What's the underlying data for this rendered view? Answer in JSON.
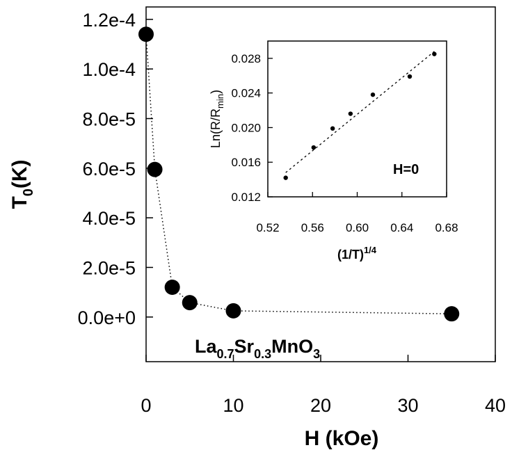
{
  "chart_data": [
    {
      "type": "scatter",
      "title": "",
      "xlabel": "H (kOe)",
      "ylabel": "T",
      "ylabel_subscript": "0",
      "ylabel_suffix": "(K)",
      "xlim": [
        0,
        40
      ],
      "ylim": [
        -1.8e-05,
        0.000125
      ],
      "xticks": [
        0,
        10,
        20,
        30,
        40
      ],
      "xtick_labels": [
        "0",
        "10",
        "20",
        "30",
        "40"
      ],
      "yticks": [
        0.0,
        2e-05,
        4e-05,
        6e-05,
        8e-05,
        0.0001,
        0.00012
      ],
      "ytick_labels": [
        "0.0e+0",
        "2.0e-5",
        "4.0e-5",
        "6.0e-5",
        "8.0e-5",
        "1.0e-4",
        "1.2e-4"
      ],
      "grid": false,
      "connector": "dotted",
      "series": [
        {
          "x": [
            0,
            1,
            3,
            5,
            10,
            35
          ],
          "y": [
            0.000114,
            5.95e-05,
            1.2e-05,
            5.8e-06,
            2.5e-06,
            1.3e-06
          ]
        }
      ],
      "annotation": {
        "parts": [
          {
            "text": "La",
            "sub": false
          },
          {
            "text": "0.7",
            "sub": true
          },
          {
            "text": "Sr",
            "sub": false
          },
          {
            "text": "0.3",
            "sub": true
          },
          {
            "text": "MnO",
            "sub": false
          },
          {
            "text": "3",
            "sub": true
          }
        ]
      }
    },
    {
      "type": "scatter",
      "title": "",
      "xlabel": "(1/T)",
      "xlabel_superscript": "1/4",
      "ylabel": "Ln(R/R",
      "ylabel_subscript": "min",
      "ylabel_suffix": ")",
      "xlim": [
        0.52,
        0.68
      ],
      "ylim": [
        0.012,
        0.03
      ],
      "xticks": [
        0.52,
        0.56,
        0.6,
        0.64,
        0.68
      ],
      "xtick_labels": [
        "0.52",
        "0.56",
        "0.60",
        "0.64",
        "0.68"
      ],
      "yticks": [
        0.012,
        0.016,
        0.02,
        0.024,
        0.028
      ],
      "ytick_labels": [
        "0.012",
        "0.016",
        "0.020",
        "0.024",
        "0.028"
      ],
      "grid": false,
      "annotation_text": "H=0",
      "series": [
        {
          "x": [
            0.536,
            0.561,
            0.578,
            0.594,
            0.614,
            0.647,
            0.669
          ],
          "y": [
            0.0142,
            0.0177,
            0.0199,
            0.0216,
            0.0238,
            0.0259,
            0.0285
          ]
        }
      ],
      "fit_line": {
        "x": [
          0.536,
          0.669
        ],
        "y": [
          0.0148,
          0.0288
        ]
      }
    }
  ]
}
